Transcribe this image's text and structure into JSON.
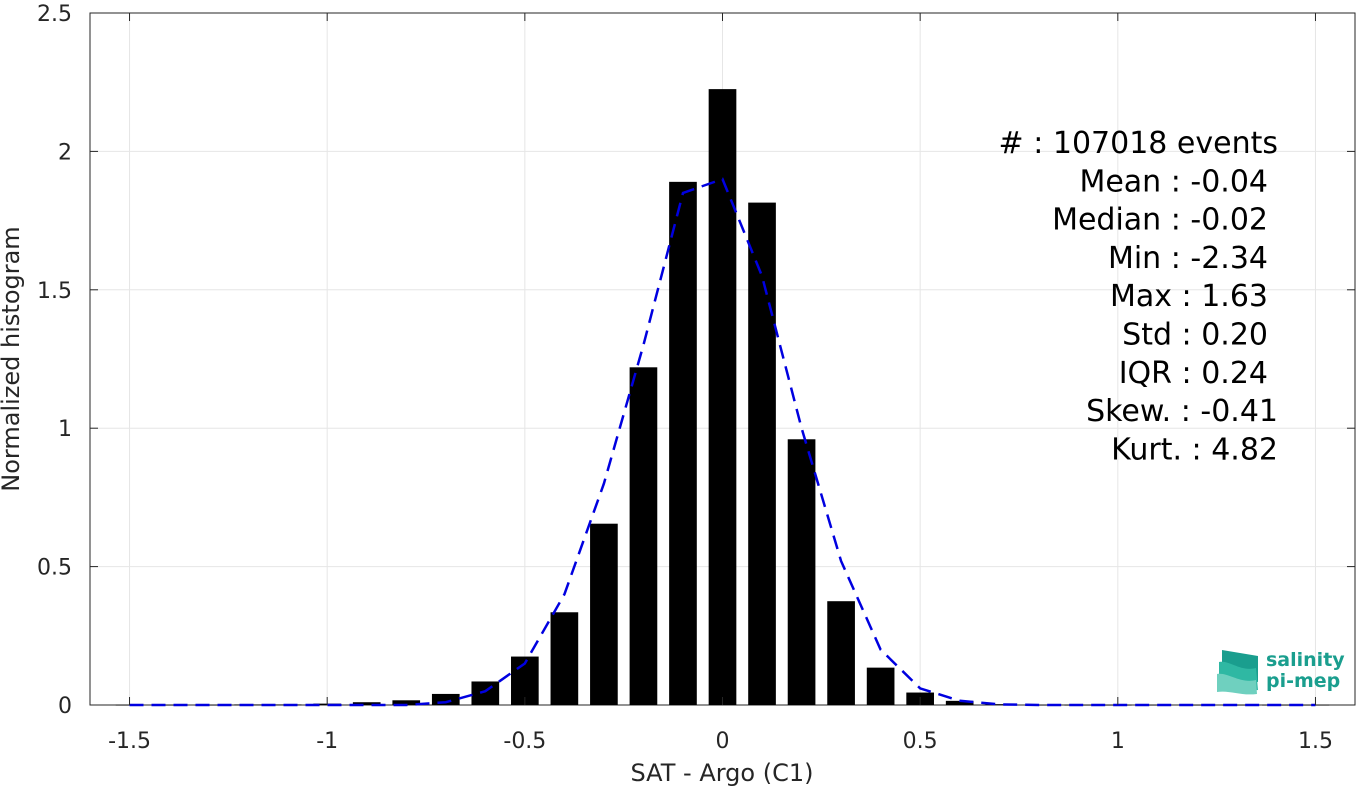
{
  "chart_data": {
    "type": "bar",
    "xlabel": "SAT - Argo (C1)",
    "ylabel": "Normalized histogram",
    "xlim": [
      -1.6,
      1.6
    ],
    "ylim": [
      0,
      2.5
    ],
    "xticks": [
      -1.5,
      -1,
      -0.5,
      0,
      0.5,
      1,
      1.5
    ],
    "xtick_labels": [
      "-1.5",
      "-1",
      "-0.5",
      "0",
      "0.5",
      "1",
      "1.5"
    ],
    "yticks": [
      0,
      0.5,
      1,
      1.5,
      2,
      2.5
    ],
    "ytick_labels": [
      "0",
      "0.5",
      "1",
      "1.5",
      "2",
      "2.5"
    ],
    "grid": true,
    "bar_width": 0.07,
    "bars": {
      "x": [
        -1.5,
        -1.4,
        -1.3,
        -1.2,
        -1.1,
        -1.0,
        -0.9,
        -0.8,
        -0.7,
        -0.6,
        -0.5,
        -0.4,
        -0.3,
        -0.2,
        -0.1,
        0.0,
        0.1,
        0.2,
        0.3,
        0.4,
        0.5,
        0.6,
        0.7,
        0.8,
        0.9,
        1.0,
        1.1,
        1.2,
        1.3,
        1.4,
        1.5
      ],
      "values": [
        0.001,
        0.001,
        0.001,
        0.002,
        0.002,
        0.005,
        0.01,
        0.017,
        0.04,
        0.085,
        0.175,
        0.335,
        0.655,
        1.22,
        1.89,
        2.225,
        1.815,
        0.96,
        0.375,
        0.135,
        0.045,
        0.015,
        0.003,
        0.001,
        0.001,
        0.001,
        0.001,
        0.001,
        0.001,
        0.001,
        0.001
      ],
      "color": "#000000"
    },
    "fit_curve": {
      "style": "dashed",
      "color": "#0000e0",
      "x": [
        -1.5,
        -1.4,
        -1.3,
        -1.2,
        -1.1,
        -1.0,
        -0.9,
        -0.8,
        -0.7,
        -0.6,
        -0.5,
        -0.4,
        -0.3,
        -0.2,
        -0.1,
        0.0,
        0.1,
        0.2,
        0.3,
        0.4,
        0.5,
        0.6,
        0.7,
        0.8,
        0.9,
        1.0,
        1.1,
        1.2,
        1.3,
        1.4,
        1.5
      ],
      "values": [
        0,
        0,
        0,
        0,
        0,
        0,
        0,
        0,
        0.01,
        0.05,
        0.15,
        0.4,
        0.8,
        1.3,
        1.85,
        1.9,
        1.55,
        1.0,
        0.52,
        0.2,
        0.06,
        0.015,
        0.002,
        0,
        0,
        0,
        0,
        0,
        0,
        0,
        0
      ]
    }
  },
  "stats": [
    {
      "label": "#  ",
      "value": ": 107018 events"
    },
    {
      "label": "Mean ",
      "value": ": -0.04"
    },
    {
      "label": "Median ",
      "value": ": -0.02"
    },
    {
      "label": "Min ",
      "value": ": -2.34"
    },
    {
      "label": "Max ",
      "value": ": 1.63"
    },
    {
      "label": "Std ",
      "value": ": 0.20"
    },
    {
      "label": "IQR ",
      "value": ": 0.24"
    },
    {
      "label": "Skew. ",
      "value": ": -0.41"
    },
    {
      "label": "Kurt. ",
      "value": ": 4.82"
    }
  ],
  "logo": {
    "line1": "salinity",
    "line2": "pi-mep",
    "color": "#1a9e8e"
  }
}
